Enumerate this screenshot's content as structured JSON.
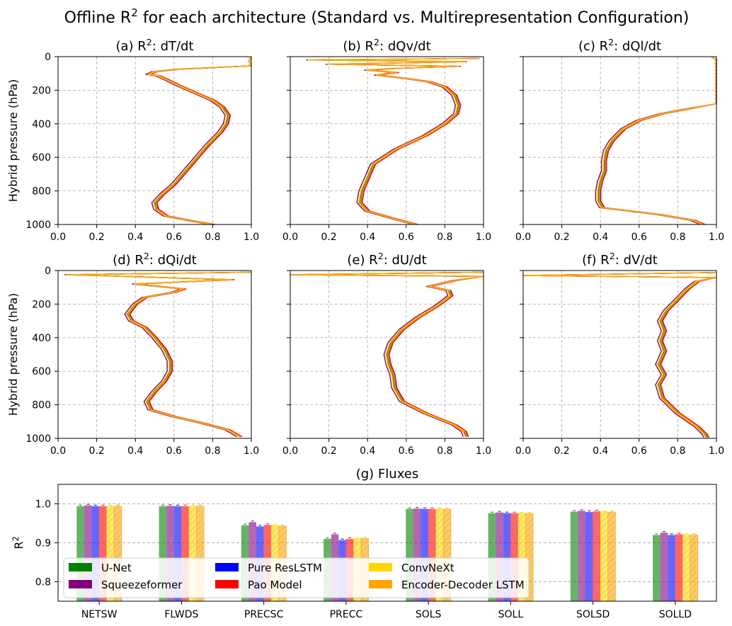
{
  "suptitle": "Offline R² for each architecture (Standard vs. Multirepresentation Configuration)",
  "colors": {
    "unet": "#008000",
    "squeezeformer": "#800080",
    "pure_reslstm": "#0000ff",
    "pao_model": "#ff0000",
    "convnext": "#ffd700",
    "encoder_decoder_lstm": "#ffa500"
  },
  "chart_data": [
    {
      "type": "line",
      "id": "a",
      "title": "(a) R²: dT/dt",
      "xlabel": "",
      "ylabel": "Hybrid pressure (hPa)",
      "xlim": [
        0,
        1
      ],
      "ylim": [
        1000,
        0
      ],
      "xticks": [
        "0.0",
        "0.2",
        "0.4",
        "0.6",
        "0.8",
        "1.0"
      ],
      "yticks": [
        "0",
        "200",
        "400",
        "600",
        "800",
        "1000"
      ],
      "profile": [
        [
          1.0,
          5
        ],
        [
          0.99,
          25
        ],
        [
          1.0,
          55
        ],
        [
          0.62,
          75
        ],
        [
          0.5,
          90
        ],
        [
          0.47,
          105
        ],
        [
          0.52,
          115
        ],
        [
          0.55,
          130
        ],
        [
          0.62,
          170
        ],
        [
          0.72,
          220
        ],
        [
          0.8,
          260
        ],
        [
          0.85,
          300
        ],
        [
          0.88,
          350
        ],
        [
          0.87,
          400
        ],
        [
          0.84,
          450
        ],
        [
          0.78,
          520
        ],
        [
          0.72,
          600
        ],
        [
          0.66,
          680
        ],
        [
          0.6,
          760
        ],
        [
          0.54,
          820
        ],
        [
          0.5,
          870
        ],
        [
          0.51,
          910
        ],
        [
          0.56,
          950
        ],
        [
          0.7,
          980
        ],
        [
          0.8,
          1000
        ]
      ]
    },
    {
      "type": "line",
      "id": "b",
      "title": "(b) R²: dQv/dt",
      "xlabel": "",
      "ylabel": "",
      "xlim": [
        0,
        1
      ],
      "ylim": [
        1000,
        0
      ],
      "xticks": [
        "0.0",
        "0.2",
        "0.4",
        "0.6",
        "0.8",
        "1.0"
      ],
      "yticks": [],
      "profile": [
        [
          0.98,
          10
        ],
        [
          0.1,
          20
        ],
        [
          0.9,
          30
        ],
        [
          0.2,
          45
        ],
        [
          0.87,
          58
        ],
        [
          0.55,
          70
        ],
        [
          0.4,
          80
        ],
        [
          0.55,
          95
        ],
        [
          0.45,
          110
        ],
        [
          0.6,
          130
        ],
        [
          0.72,
          150
        ],
        [
          0.8,
          180
        ],
        [
          0.85,
          230
        ],
        [
          0.87,
          290
        ],
        [
          0.86,
          340
        ],
        [
          0.8,
          400
        ],
        [
          0.7,
          470
        ],
        [
          0.55,
          550
        ],
        [
          0.43,
          640
        ],
        [
          0.4,
          720
        ],
        [
          0.37,
          800
        ],
        [
          0.36,
          870
        ],
        [
          0.4,
          920
        ],
        [
          0.52,
          960
        ],
        [
          0.65,
          1000
        ]
      ]
    },
    {
      "type": "line",
      "id": "c",
      "title": "(c) R²: dQl/dt",
      "xlabel": "",
      "ylabel": "",
      "xlim": [
        0,
        1
      ],
      "ylim": [
        1000,
        0
      ],
      "xticks": [
        "0.0",
        "0.2",
        "0.4",
        "0.6",
        "0.8",
        "1.0"
      ],
      "yticks": [],
      "profile": [
        [
          0.98,
          5
        ],
        [
          1.0,
          15
        ],
        [
          1.0,
          280
        ],
        [
          0.86,
          310
        ],
        [
          0.72,
          340
        ],
        [
          0.6,
          380
        ],
        [
          0.52,
          430
        ],
        [
          0.46,
          500
        ],
        [
          0.43,
          560
        ],
        [
          0.42,
          620
        ],
        [
          0.42,
          680
        ],
        [
          0.4,
          740
        ],
        [
          0.39,
          800
        ],
        [
          0.39,
          860
        ],
        [
          0.41,
          900
        ],
        [
          0.7,
          940
        ],
        [
          0.88,
          975
        ],
        [
          0.93,
          1000
        ]
      ]
    },
    {
      "type": "line",
      "id": "d",
      "title": "(d) R²: dQi/dt",
      "xlabel": "",
      "ylabel": "Hybrid pressure (hPa)",
      "xlim": [
        0,
        1
      ],
      "ylim": [
        1000,
        0
      ],
      "xticks": [
        "0.0",
        "0.2",
        "0.4",
        "0.6",
        "0.8",
        "1.0"
      ],
      "yticks": [
        "0",
        "200",
        "400",
        "600",
        "800",
        "1000"
      ],
      "profile": [
        [
          1.0,
          10
        ],
        [
          0.05,
          25
        ],
        [
          0.9,
          55
        ],
        [
          0.4,
          80
        ],
        [
          0.65,
          110
        ],
        [
          0.6,
          130
        ],
        [
          0.45,
          160
        ],
        [
          0.4,
          200
        ],
        [
          0.36,
          260
        ],
        [
          0.38,
          300
        ],
        [
          0.45,
          340
        ],
        [
          0.5,
          400
        ],
        [
          0.55,
          470
        ],
        [
          0.58,
          540
        ],
        [
          0.58,
          600
        ],
        [
          0.55,
          660
        ],
        [
          0.5,
          720
        ],
        [
          0.46,
          780
        ],
        [
          0.48,
          830
        ],
        [
          0.6,
          870
        ],
        [
          0.75,
          910
        ],
        [
          0.88,
          950
        ],
        [
          0.94,
          990
        ]
      ]
    },
    {
      "type": "line",
      "id": "e",
      "title": "(e) R²: dU/dt",
      "xlabel": "",
      "ylabel": "",
      "xlim": [
        0,
        1
      ],
      "ylim": [
        1000,
        0
      ],
      "xticks": [
        "0.0",
        "0.2",
        "0.4",
        "0.6",
        "0.8",
        "1.0"
      ],
      "yticks": [],
      "profile": [
        [
          1.0,
          10
        ],
        [
          0.0,
          25
        ],
        [
          1.0,
          35
        ],
        [
          0.85,
          60
        ],
        [
          0.72,
          95
        ],
        [
          0.82,
          120
        ],
        [
          0.83,
          150
        ],
        [
          0.76,
          210
        ],
        [
          0.66,
          280
        ],
        [
          0.58,
          350
        ],
        [
          0.52,
          430
        ],
        [
          0.5,
          500
        ],
        [
          0.51,
          560
        ],
        [
          0.53,
          620
        ],
        [
          0.54,
          700
        ],
        [
          0.58,
          780
        ],
        [
          0.7,
          850
        ],
        [
          0.85,
          920
        ],
        [
          0.9,
          960
        ],
        [
          0.91,
          990
        ]
      ]
    },
    {
      "type": "line",
      "id": "f",
      "title": "(f) R²: dV/dt",
      "xlabel": "",
      "ylabel": "",
      "xlim": [
        0,
        1
      ],
      "ylim": [
        1000,
        0
      ],
      "xticks": [
        "0.0",
        "0.2",
        "0.4",
        "0.6",
        "0.8",
        "1.0"
      ],
      "yticks": [],
      "profile": [
        [
          1.0,
          12
        ],
        [
          0.0,
          30
        ],
        [
          1.0,
          42
        ],
        [
          0.9,
          65
        ],
        [
          0.85,
          110
        ],
        [
          0.8,
          170
        ],
        [
          0.74,
          240
        ],
        [
          0.71,
          300
        ],
        [
          0.73,
          360
        ],
        [
          0.71,
          420
        ],
        [
          0.73,
          480
        ],
        [
          0.7,
          560
        ],
        [
          0.73,
          620
        ],
        [
          0.7,
          680
        ],
        [
          0.72,
          760
        ],
        [
          0.8,
          850
        ],
        [
          0.9,
          930
        ],
        [
          0.94,
          975
        ],
        [
          0.95,
          995
        ]
      ]
    },
    {
      "type": "bar",
      "id": "g",
      "title": "(g) Fluxes",
      "xlabel": "",
      "ylabel": "R²",
      "ylim": [
        0.75,
        1.05
      ],
      "yticks": [
        0.8,
        0.9,
        1.0
      ],
      "ytick_labels": [
        "0.8",
        "0.9",
        "1.0"
      ],
      "categories": [
        "NETSW",
        "FLWDS",
        "PRECSC",
        "PRECC",
        "SOLS",
        "SOLL",
        "SOLSD",
        "SOLLD"
      ],
      "series": [
        {
          "name": "U-Net",
          "color_key": "unet",
          "values": [
            0.994,
            0.994,
            0.945,
            0.91,
            0.987,
            0.976,
            0.98,
            0.92
          ]
        },
        {
          "name": "Squeezeformer",
          "color_key": "squeezeformer",
          "values": [
            0.996,
            0.995,
            0.953,
            0.922,
            0.988,
            0.978,
            0.982,
            0.926
          ]
        },
        {
          "name": "Pure ResLSTM",
          "color_key": "pure_reslstm",
          "values": [
            0.994,
            0.994,
            0.942,
            0.907,
            0.987,
            0.976,
            0.979,
            0.92
          ]
        },
        {
          "name": "Pao Model",
          "color_key": "pao_model",
          "values": [
            0.994,
            0.994,
            0.946,
            0.91,
            0.987,
            0.976,
            0.981,
            0.922
          ]
        },
        {
          "name": "ConvNeXt",
          "color_key": "convnext",
          "values": [
            0.994,
            0.994,
            0.945,
            0.911,
            0.987,
            0.976,
            0.98,
            0.921
          ]
        },
        {
          "name": "Encoder-Decoder LSTM",
          "color_key": "encoder_decoder_lstm",
          "values": [
            0.994,
            0.994,
            0.943,
            0.911,
            0.986,
            0.975,
            0.979,
            0.92
          ]
        }
      ],
      "legend": {
        "location": "lower-left",
        "entries": [
          "U-Net",
          "Squeezeformer",
          "Pure ResLSTM",
          "Pao Model",
          "ConvNeXt",
          "Encoder-Decoder LSTM"
        ]
      }
    }
  ]
}
